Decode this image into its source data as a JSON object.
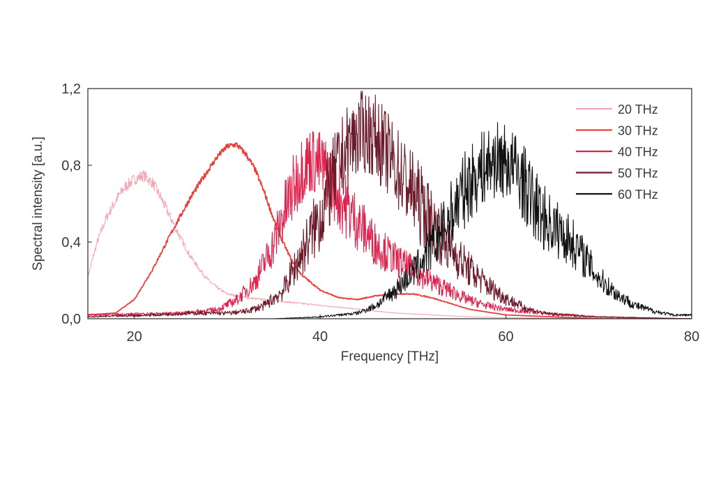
{
  "chart_data": {
    "type": "line",
    "title": "",
    "xlabel": "Frequency [THz]",
    "ylabel": "Spectral intensity [a.u.]",
    "xlim": [
      15,
      80
    ],
    "ylim": [
      0,
      1.2
    ],
    "xticks": [
      20,
      40,
      60,
      80
    ],
    "xtick_labels": [
      "20",
      "40",
      "60",
      "80"
    ],
    "yticks": [
      0,
      0.4,
      0.8,
      1.2
    ],
    "ytick_labels": [
      "0,0",
      "0,4",
      "0,8",
      "1,2"
    ],
    "grid": false,
    "legend_position": "top-right",
    "series": [
      {
        "name": "20 THz",
        "color": "#f2a9b6",
        "points": [
          [
            15,
            0.22
          ],
          [
            16,
            0.4
          ],
          [
            17,
            0.53
          ],
          [
            18,
            0.62
          ],
          [
            19,
            0.69
          ],
          [
            20,
            0.73
          ],
          [
            21,
            0.75
          ],
          [
            22,
            0.71
          ],
          [
            23,
            0.62
          ],
          [
            24,
            0.52
          ],
          [
            25,
            0.42
          ],
          [
            26,
            0.33
          ],
          [
            27,
            0.26
          ],
          [
            28,
            0.2
          ],
          [
            29,
            0.16
          ],
          [
            30,
            0.13
          ],
          [
            32,
            0.11
          ],
          [
            34,
            0.1
          ],
          [
            36,
            0.09
          ],
          [
            38,
            0.08
          ],
          [
            40,
            0.07
          ],
          [
            44,
            0.05
          ],
          [
            48,
            0.03
          ],
          [
            52,
            0.02
          ],
          [
            56,
            0.01
          ],
          [
            60,
            0.005
          ],
          [
            65,
            0.003
          ],
          [
            80,
            0.0
          ]
        ]
      },
      {
        "name": "30 THz",
        "color": "#e8403c",
        "points": [
          [
            15,
            0.02
          ],
          [
            18,
            0.03
          ],
          [
            20,
            0.1
          ],
          [
            22,
            0.26
          ],
          [
            24,
            0.45
          ],
          [
            26,
            0.63
          ],
          [
            28,
            0.78
          ],
          [
            29,
            0.85
          ],
          [
            30,
            0.9
          ],
          [
            31,
            0.91
          ],
          [
            32,
            0.86
          ],
          [
            33,
            0.78
          ],
          [
            34,
            0.66
          ],
          [
            35,
            0.52
          ],
          [
            36,
            0.4
          ],
          [
            37,
            0.3
          ],
          [
            38,
            0.23
          ],
          [
            40,
            0.15
          ],
          [
            42,
            0.11
          ],
          [
            44,
            0.1
          ],
          [
            46,
            0.12
          ],
          [
            48,
            0.13
          ],
          [
            50,
            0.13
          ],
          [
            52,
            0.11
          ],
          [
            54,
            0.08
          ],
          [
            56,
            0.05
          ],
          [
            60,
            0.02
          ],
          [
            65,
            0.01
          ],
          [
            70,
            0.0
          ],
          [
            80,
            0.0
          ]
        ]
      },
      {
        "name": "40 THz",
        "color": "#e0234e",
        "points": [
          [
            15,
            0.02
          ],
          [
            25,
            0.03
          ],
          [
            29,
            0.05
          ],
          [
            31,
            0.1
          ],
          [
            33,
            0.2
          ],
          [
            35,
            0.4
          ],
          [
            36,
            0.55
          ],
          [
            37,
            0.68
          ],
          [
            38,
            0.8
          ],
          [
            39,
            0.85
          ],
          [
            40,
            0.82
          ],
          [
            41,
            0.76
          ],
          [
            42,
            0.66
          ],
          [
            44,
            0.52
          ],
          [
            46,
            0.4
          ],
          [
            48,
            0.32
          ],
          [
            50,
            0.26
          ],
          [
            52,
            0.2
          ],
          [
            54,
            0.15
          ],
          [
            56,
            0.1
          ],
          [
            58,
            0.07
          ],
          [
            60,
            0.05
          ],
          [
            64,
            0.03
          ],
          [
            70,
            0.01
          ],
          [
            80,
            0.0
          ]
        ]
      },
      {
        "name": "50 THz",
        "color": "#6b1a2a",
        "points": [
          [
            15,
            0.01
          ],
          [
            22,
            0.02
          ],
          [
            26,
            0.03
          ],
          [
            30,
            0.03
          ],
          [
            32,
            0.04
          ],
          [
            34,
            0.07
          ],
          [
            36,
            0.15
          ],
          [
            38,
            0.35
          ],
          [
            40,
            0.55
          ],
          [
            41,
            0.7
          ],
          [
            42,
            0.82
          ],
          [
            43,
            0.92
          ],
          [
            44,
            0.98
          ],
          [
            45,
            1.0
          ],
          [
            46,
            0.97
          ],
          [
            47,
            0.9
          ],
          [
            48,
            0.83
          ],
          [
            50,
            0.68
          ],
          [
            52,
            0.52
          ],
          [
            54,
            0.38
          ],
          [
            56,
            0.27
          ],
          [
            58,
            0.18
          ],
          [
            60,
            0.11
          ],
          [
            62,
            0.06
          ],
          [
            64,
            0.03
          ],
          [
            66,
            0.02
          ],
          [
            70,
            0.01
          ],
          [
            80,
            0.0
          ]
        ]
      },
      {
        "name": "60 THz",
        "color": "#111111",
        "points": [
          [
            15,
            0.0
          ],
          [
            35,
            0.0
          ],
          [
            40,
            0.01
          ],
          [
            44,
            0.03
          ],
          [
            46,
            0.07
          ],
          [
            48,
            0.15
          ],
          [
            50,
            0.25
          ],
          [
            52,
            0.38
          ],
          [
            54,
            0.55
          ],
          [
            55,
            0.65
          ],
          [
            56,
            0.72
          ],
          [
            57,
            0.78
          ],
          [
            58,
            0.82
          ],
          [
            59,
            0.85
          ],
          [
            60,
            0.84
          ],
          [
            61,
            0.8
          ],
          [
            62,
            0.72
          ],
          [
            63,
            0.62
          ],
          [
            64,
            0.55
          ],
          [
            65,
            0.5
          ],
          [
            66,
            0.46
          ],
          [
            67,
            0.42
          ],
          [
            68,
            0.36
          ],
          [
            69,
            0.29
          ],
          [
            70,
            0.22
          ],
          [
            72,
            0.13
          ],
          [
            74,
            0.07
          ],
          [
            76,
            0.04
          ],
          [
            78,
            0.02
          ],
          [
            80,
            0.02
          ]
        ]
      }
    ]
  }
}
